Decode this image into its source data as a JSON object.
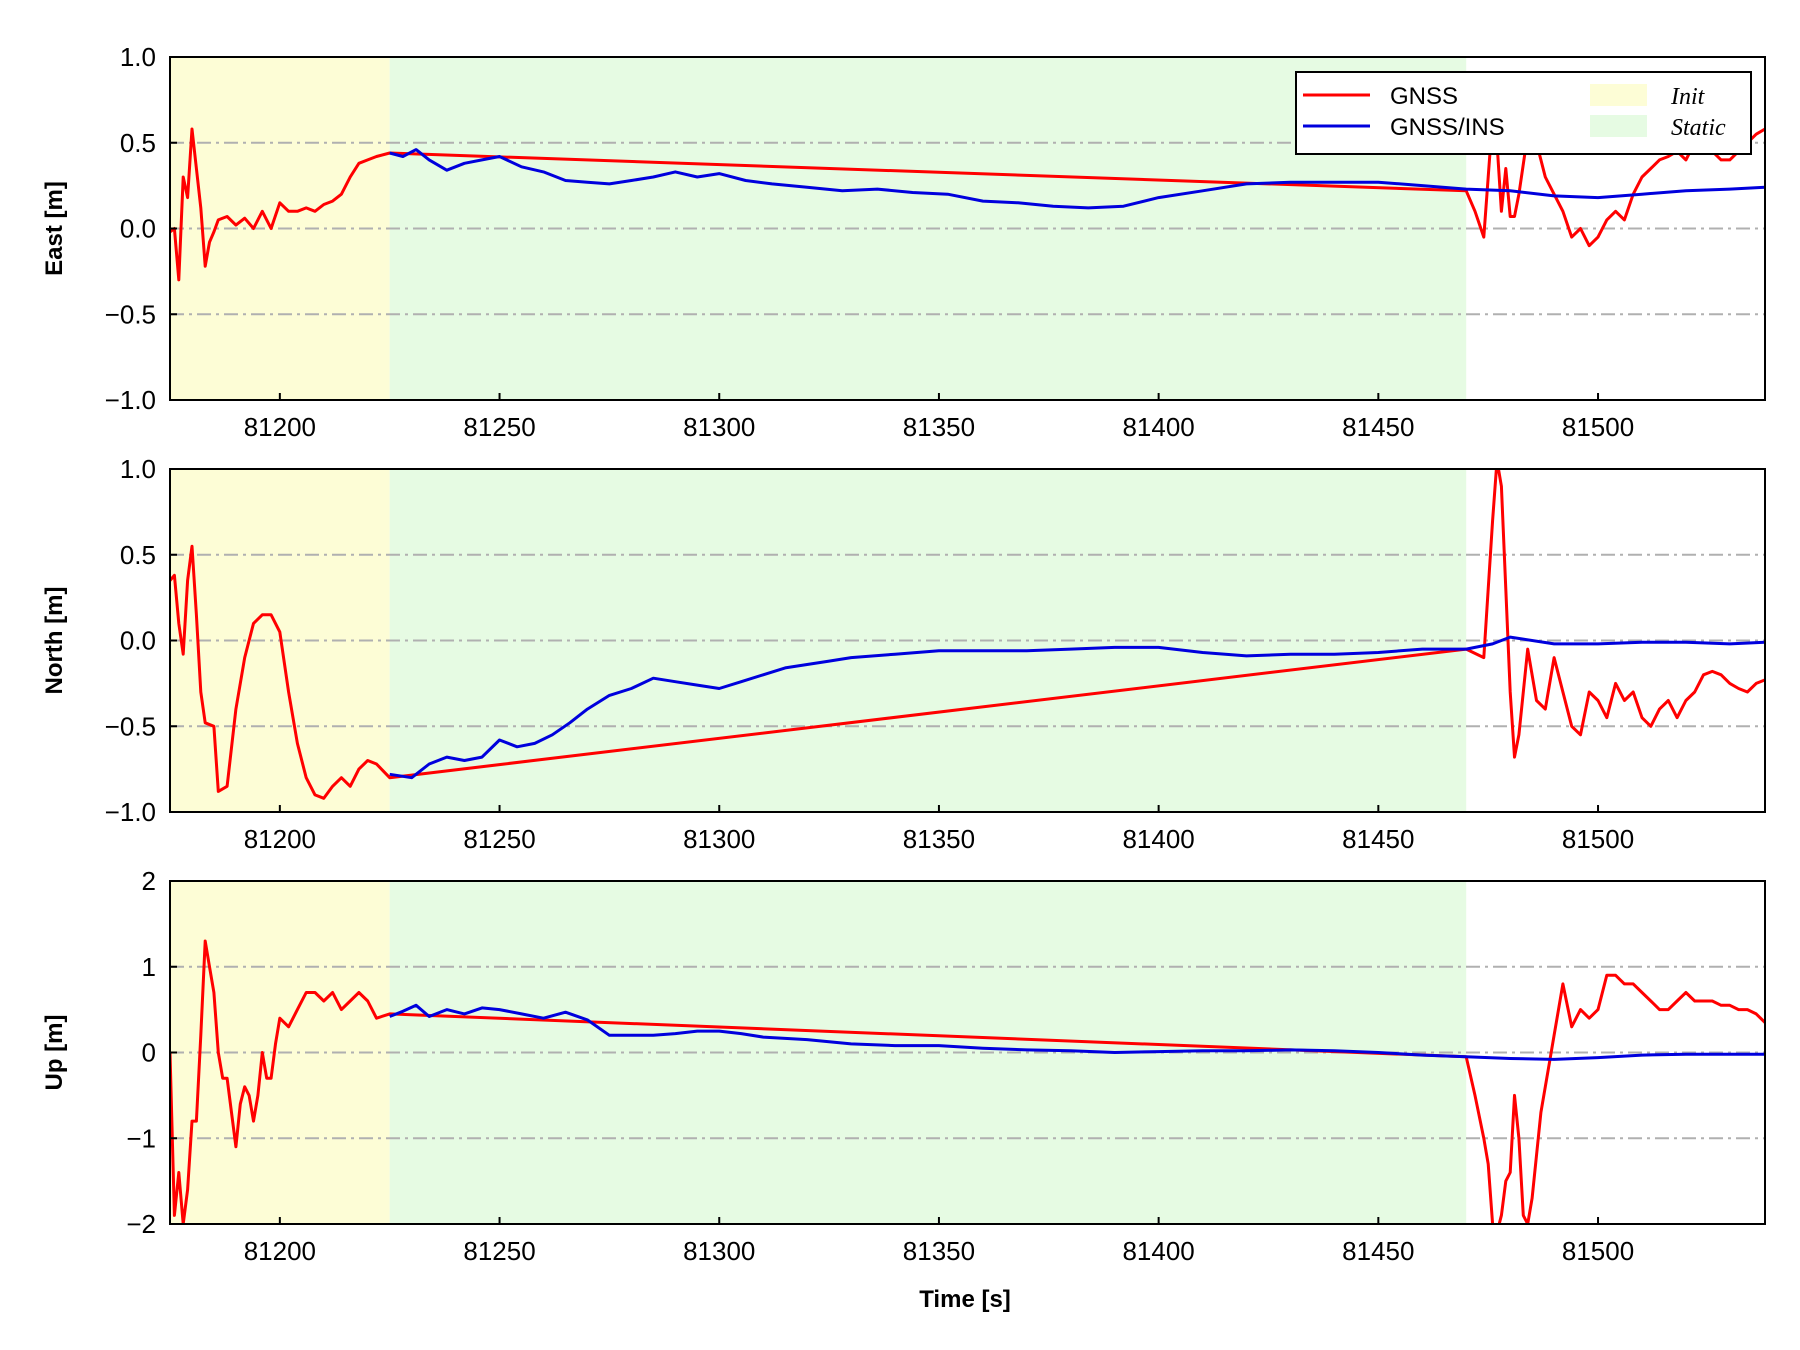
{
  "chart_data": {
    "type": "line",
    "xlabel": "Time [s]",
    "xlim": [
      81175,
      81538
    ],
    "xticks": [
      81200,
      81250,
      81300,
      81350,
      81400,
      81450,
      81500
    ],
    "grid": "horizontal dash-dot lines",
    "colors": {
      "GNSS": "#ff0000",
      "GNSS/INS": "#0000dd",
      "Init": "#fdfdd6",
      "Static": "#e6fbe3",
      "grid": "#b0b0b0"
    },
    "legend": {
      "placement": "top-right of first panel",
      "series": [
        "GNSS",
        "GNSS/INS"
      ],
      "regions": [
        "Init",
        "Static"
      ]
    },
    "regions": [
      {
        "name": "Init",
        "x": [
          81175,
          81225
        ]
      },
      {
        "name": "Static",
        "x": [
          81225,
          81470
        ]
      }
    ],
    "panels": [
      {
        "ylabel": "East [m]",
        "ylim": [
          -1.0,
          1.0
        ],
        "yticks": [
          -1.0,
          -0.5,
          0.0,
          0.5,
          1.0
        ],
        "ytick_labels": [
          "−1.0",
          "−0.5",
          "0.0",
          "0.5",
          "1.0"
        ],
        "gridlines": [
          -0.5,
          0.0,
          0.5
        ],
        "series": [
          {
            "name": "GNSS",
            "x": [
              81175,
              81176,
              81177,
              81178,
              81179,
              81180,
              81181,
              81182,
              81183,
              81184,
              81185,
              81186,
              81188,
              81190,
              81192,
              81194,
              81196,
              81198,
              81200,
              81202,
              81204,
              81206,
              81208,
              81210,
              81212,
              81214,
              81216,
              81218,
              81220,
              81222,
              81225,
              81470,
              81472,
              81474,
              81475,
              81476,
              81477,
              81478,
              81479,
              81480,
              81481,
              81482,
              81484,
              81486,
              81488,
              81490,
              81492,
              81494,
              81496,
              81498,
              81500,
              81502,
              81504,
              81506,
              81508,
              81510,
              81512,
              81514,
              81516,
              81518,
              81520,
              81522,
              81524,
              81526,
              81528,
              81530,
              81532,
              81534,
              81536,
              81538
            ],
            "y": [
              -0.02,
              0.0,
              -0.3,
              0.3,
              0.18,
              0.58,
              0.35,
              0.12,
              -0.22,
              -0.08,
              -0.02,
              0.05,
              0.07,
              0.02,
              0.06,
              0.0,
              0.1,
              0.0,
              0.15,
              0.1,
              0.1,
              0.12,
              0.1,
              0.14,
              0.16,
              0.2,
              0.3,
              0.38,
              0.4,
              0.42,
              0.44,
              0.22,
              0.1,
              -0.05,
              0.3,
              0.65,
              0.5,
              0.1,
              0.35,
              0.07,
              0.07,
              0.2,
              0.55,
              0.5,
              0.3,
              0.2,
              0.1,
              -0.05,
              0.0,
              -0.1,
              -0.05,
              0.05,
              0.1,
              0.05,
              0.2,
              0.3,
              0.35,
              0.4,
              0.42,
              0.45,
              0.4,
              0.5,
              0.55,
              0.45,
              0.4,
              0.4,
              0.45,
              0.5,
              0.55,
              0.58
            ]
          },
          {
            "name": "GNSS/INS",
            "x": [
              81225,
              81228,
              81231,
              81234,
              81238,
              81242,
              81246,
              81250,
              81255,
              81260,
              81265,
              81270,
              81275,
              81280,
              81285,
              81290,
              81295,
              81300,
              81306,
              81312,
              81320,
              81328,
              81336,
              81344,
              81352,
              81360,
              81368,
              81376,
              81384,
              81392,
              81400,
              81410,
              81420,
              81430,
              81440,
              81450,
              81460,
              81470,
              81480,
              81490,
              81500,
              81510,
              81520,
              81530,
              81538
            ],
            "y": [
              0.44,
              0.42,
              0.46,
              0.4,
              0.34,
              0.38,
              0.4,
              0.42,
              0.36,
              0.33,
              0.28,
              0.27,
              0.26,
              0.28,
              0.3,
              0.33,
              0.3,
              0.32,
              0.28,
              0.26,
              0.24,
              0.22,
              0.23,
              0.21,
              0.2,
              0.16,
              0.15,
              0.13,
              0.12,
              0.13,
              0.18,
              0.22,
              0.26,
              0.27,
              0.27,
              0.27,
              0.25,
              0.23,
              0.22,
              0.19,
              0.18,
              0.2,
              0.22,
              0.23,
              0.24
            ]
          }
        ]
      },
      {
        "ylabel": "North [m]",
        "ylim": [
          -1.0,
          1.0
        ],
        "yticks": [
          -1.0,
          -0.5,
          0.0,
          0.5,
          1.0
        ],
        "ytick_labels": [
          "−1.0",
          "−0.5",
          "0.0",
          "0.5",
          "1.0"
        ],
        "gridlines": [
          -0.5,
          0.0,
          0.5
        ],
        "series": [
          {
            "name": "GNSS",
            "x": [
              81175,
              81176,
              81177,
              81178,
              81179,
              81180,
              81181,
              81182,
              81183,
              81185,
              81186,
              81188,
              81190,
              81192,
              81194,
              81196,
              81198,
              81200,
              81202,
              81204,
              81206,
              81208,
              81210,
              81212,
              81214,
              81216,
              81218,
              81220,
              81222,
              81225,
              81470,
              81474,
              81476,
              81477,
              81478,
              81479,
              81480,
              81481,
              81482,
              81484,
              81486,
              81488,
              81490,
              81492,
              81494,
              81496,
              81498,
              81500,
              81502,
              81504,
              81506,
              81508,
              81510,
              81512,
              81514,
              81516,
              81518,
              81520,
              81522,
              81524,
              81526,
              81528,
              81530,
              81532,
              81534,
              81536,
              81538
            ],
            "y": [
              0.35,
              0.38,
              0.1,
              -0.08,
              0.35,
              0.55,
              0.15,
              -0.3,
              -0.48,
              -0.5,
              -0.88,
              -0.85,
              -0.4,
              -0.1,
              0.1,
              0.15,
              0.15,
              0.05,
              -0.3,
              -0.6,
              -0.8,
              -0.9,
              -0.92,
              -0.85,
              -0.8,
              -0.85,
              -0.75,
              -0.7,
              -0.72,
              -0.8,
              -0.05,
              -0.1,
              0.7,
              1.05,
              0.9,
              0.3,
              -0.3,
              -0.68,
              -0.55,
              -0.05,
              -0.35,
              -0.4,
              -0.1,
              -0.3,
              -0.5,
              -0.55,
              -0.3,
              -0.35,
              -0.45,
              -0.25,
              -0.35,
              -0.3,
              -0.45,
              -0.5,
              -0.4,
              -0.35,
              -0.45,
              -0.35,
              -0.3,
              -0.2,
              -0.18,
              -0.2,
              -0.25,
              -0.28,
              -0.3,
              -0.25,
              -0.23
            ]
          },
          {
            "name": "GNSS/INS",
            "x": [
              81225,
              81230,
              81234,
              81238,
              81242,
              81246,
              81250,
              81254,
              81258,
              81262,
              81266,
              81270,
              81275,
              81280,
              81285,
              81290,
              81295,
              81300,
              81305,
              81310,
              81315,
              81320,
              81325,
              81330,
              81340,
              81350,
              81360,
              81370,
              81380,
              81390,
              81400,
              81410,
              81420,
              81430,
              81440,
              81450,
              81460,
              81470,
              81476,
              81480,
              81490,
              81500,
              81510,
              81520,
              81530,
              81538
            ],
            "y": [
              -0.78,
              -0.8,
              -0.72,
              -0.68,
              -0.7,
              -0.68,
              -0.58,
              -0.62,
              -0.6,
              -0.55,
              -0.48,
              -0.4,
              -0.32,
              -0.28,
              -0.22,
              -0.24,
              -0.26,
              -0.28,
              -0.24,
              -0.2,
              -0.16,
              -0.14,
              -0.12,
              -0.1,
              -0.08,
              -0.06,
              -0.06,
              -0.06,
              -0.05,
              -0.04,
              -0.04,
              -0.07,
              -0.09,
              -0.08,
              -0.08,
              -0.07,
              -0.05,
              -0.05,
              -0.02,
              0.02,
              -0.02,
              -0.02,
              -0.01,
              -0.01,
              -0.02,
              -0.01
            ]
          }
        ]
      },
      {
        "ylabel": "Up [m]",
        "ylim": [
          -2,
          2
        ],
        "yticks": [
          -2,
          -1,
          0,
          1,
          2
        ],
        "ytick_labels": [
          "−2",
          "−1",
          "0",
          "1",
          "2"
        ],
        "gridlines": [
          -1,
          0,
          1
        ],
        "series": [
          {
            "name": "GNSS",
            "x": [
              81175,
              81176,
              81177,
              81178,
              81179,
              81180,
              81181,
              81182,
              81183,
              81184,
              81185,
              81186,
              81187,
              81188,
              81189,
              81190,
              81191,
              81192,
              81193,
              81194,
              81195,
              81196,
              81197,
              81198,
              81199,
              81200,
              81202,
              81204,
              81206,
              81208,
              81210,
              81212,
              81214,
              81216,
              81218,
              81220,
              81222,
              81225,
              81470,
              81472,
              81474,
              81475,
              81476,
              81477,
              81478,
              81479,
              81480,
              81481,
              81482,
              81483,
              81484,
              81485,
              81486,
              81487,
              81488,
              81489,
              81490,
              81492,
              81494,
              81496,
              81498,
              81500,
              81502,
              81504,
              81506,
              81508,
              81510,
              81512,
              81514,
              81516,
              81518,
              81520,
              81522,
              81524,
              81526,
              81528,
              81530,
              81532,
              81534,
              81536,
              81538
            ],
            "y": [
              0.0,
              -1.9,
              -1.4,
              -2.0,
              -1.6,
              -0.8,
              -0.8,
              0.2,
              1.3,
              1.0,
              0.7,
              0.0,
              -0.3,
              -0.3,
              -0.7,
              -1.1,
              -0.6,
              -0.4,
              -0.5,
              -0.8,
              -0.5,
              0.0,
              -0.3,
              -0.3,
              0.1,
              0.4,
              0.3,
              0.5,
              0.7,
              0.7,
              0.6,
              0.7,
              0.5,
              0.6,
              0.7,
              0.6,
              0.4,
              0.45,
              -0.05,
              -0.5,
              -1.0,
              -1.3,
              -2.0,
              -2.1,
              -1.9,
              -1.5,
              -1.4,
              -0.5,
              -1.0,
              -1.9,
              -2.0,
              -1.7,
              -1.2,
              -0.7,
              -0.4,
              -0.1,
              0.2,
              0.8,
              0.3,
              0.5,
              0.4,
              0.5,
              0.9,
              0.9,
              0.8,
              0.8,
              0.7,
              0.6,
              0.5,
              0.5,
              0.6,
              0.7,
              0.6,
              0.6,
              0.6,
              0.55,
              0.55,
              0.5,
              0.5,
              0.45,
              0.35
            ]
          },
          {
            "name": "GNSS/INS",
            "x": [
              81225,
              81228,
              81231,
              81234,
              81238,
              81242,
              81246,
              81250,
              81255,
              81260,
              81265,
              81270,
              81275,
              81280,
              81285,
              81290,
              81295,
              81300,
              81305,
              81310,
              81320,
              81330,
              81340,
              81350,
              81360,
              81370,
              81380,
              81390,
              81400,
              81410,
              81420,
              81430,
              81440,
              81450,
              81460,
              81470,
              81480,
              81490,
              81500,
              81510,
              81520,
              81530,
              81538
            ],
            "y": [
              0.42,
              0.48,
              0.55,
              0.42,
              0.5,
              0.45,
              0.52,
              0.5,
              0.45,
              0.4,
              0.47,
              0.38,
              0.2,
              0.2,
              0.2,
              0.22,
              0.25,
              0.25,
              0.22,
              0.18,
              0.15,
              0.1,
              0.08,
              0.08,
              0.05,
              0.03,
              0.02,
              0.0,
              0.01,
              0.02,
              0.02,
              0.03,
              0.02,
              0.0,
              -0.03,
              -0.05,
              -0.07,
              -0.08,
              -0.06,
              -0.03,
              -0.02,
              -0.02,
              -0.02
            ]
          }
        ]
      }
    ]
  }
}
